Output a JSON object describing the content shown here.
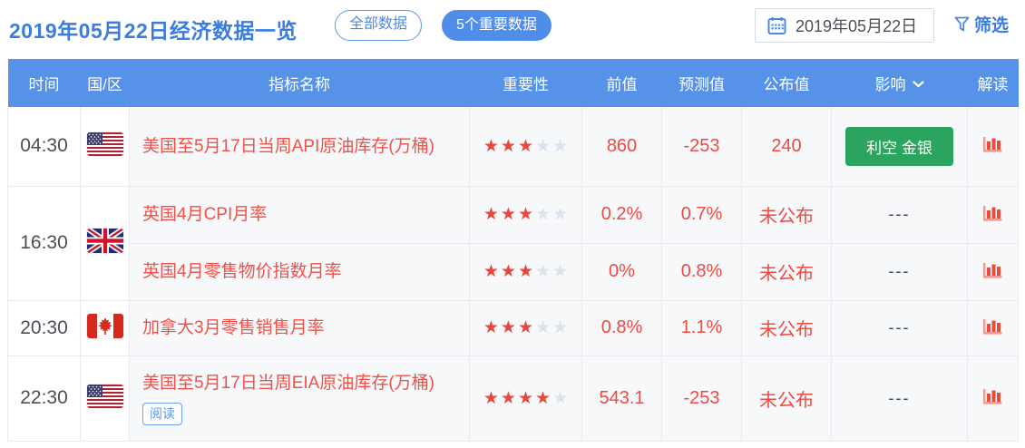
{
  "header_bar": {
    "title": "2019年05月22日经济数据一览",
    "tab_all": "全部数据",
    "tab_important": "5个重要数据",
    "date_value": "2019年05月22日",
    "filter_label": "筛选"
  },
  "table": {
    "columns": {
      "time": "时间",
      "region": "国/区",
      "indicator": "指标名称",
      "importance": "重要性",
      "previous": "前值",
      "forecast": "预测值",
      "published": "公布值",
      "impact": "影响",
      "interpret": "解读"
    }
  },
  "groups": [
    {
      "time": "04:30",
      "country": "united-states",
      "rows": [
        {
          "name": "美国至5月17日当周API原油库存(万桶)",
          "importance": 3,
          "previous": "860",
          "forecast": "-253",
          "published": "240",
          "impact_button": "利空 金银"
        }
      ]
    },
    {
      "time": "16:30",
      "country": "united-kingdom",
      "rows": [
        {
          "name": "英国4月CPI月率",
          "importance": 3,
          "previous": "0.2%",
          "forecast": "0.7%",
          "published": "未公布",
          "impact_none": "---"
        },
        {
          "name": "英国4月零售物价指数月率",
          "importance": 3,
          "previous": "0%",
          "forecast": "0.8%",
          "published": "未公布",
          "impact_none": "---"
        }
      ]
    },
    {
      "time": "20:30",
      "country": "canada",
      "rows": [
        {
          "name": "加拿大3月零售销售月率",
          "importance": 3,
          "previous": "0.8%",
          "forecast": "1.1%",
          "published": "未公布",
          "impact_none": "---"
        }
      ]
    },
    {
      "time": "22:30",
      "country": "united-states",
      "rows": [
        {
          "name": "美国至5月17日当周EIA原油库存(万桶)",
          "read_tag": "阅读",
          "importance": 4,
          "previous": "543.1",
          "forecast": "-253",
          "published": "未公布",
          "impact_none": "---"
        }
      ]
    }
  ],
  "colors": {
    "accent_blue": "#3a7ce0",
    "header_blue": "#5592e8",
    "pill_blue": "#4f8de8",
    "red_text": "#ef4a42",
    "star_red": "#e8473d",
    "star_off": "#dde2ef",
    "green_button": "#2aa45e",
    "border": "#e9eaef"
  }
}
